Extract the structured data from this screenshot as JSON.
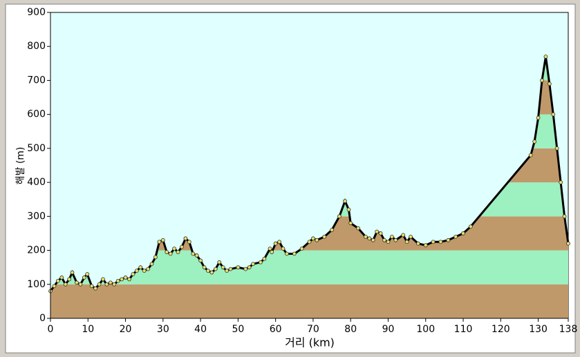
{
  "chart_data": {
    "type": "area",
    "xlabel": "거리   (km)",
    "ylabel": "해발 (m)",
    "x": [
      0,
      1,
      2,
      3,
      4,
      5,
      5.8,
      7,
      8,
      9,
      9.8,
      11,
      12,
      13,
      14,
      15,
      16,
      17,
      18,
      19,
      20,
      21,
      22,
      23,
      24,
      25,
      26,
      27,
      28,
      29,
      30,
      31,
      32,
      33,
      34,
      35,
      36,
      37,
      38,
      39,
      40,
      41,
      42,
      43,
      44,
      45,
      46,
      47,
      48,
      50,
      52,
      53,
      54,
      56,
      57,
      58.5,
      59,
      60,
      61,
      62,
      63,
      65,
      67,
      69,
      70,
      71,
      73,
      75,
      77,
      78.5,
      79.5,
      80,
      82,
      84,
      85,
      86,
      87,
      88,
      89,
      90,
      91,
      92,
      94,
      95,
      96,
      98,
      100,
      102,
      104,
      106,
      108,
      110,
      112,
      128,
      129,
      130,
      131,
      132,
      133,
      134,
      135,
      136,
      137,
      138
    ],
    "values": [
      80,
      95,
      110,
      120,
      100,
      115,
      135,
      105,
      100,
      120,
      130,
      95,
      88,
      100,
      115,
      100,
      105,
      100,
      110,
      115,
      120,
      115,
      130,
      140,
      150,
      140,
      145,
      160,
      180,
      225,
      230,
      195,
      190,
      205,
      195,
      210,
      235,
      225,
      190,
      185,
      170,
      150,
      140,
      135,
      145,
      165,
      150,
      140,
      145,
      150,
      145,
      150,
      160,
      165,
      175,
      205,
      195,
      220,
      225,
      205,
      190,
      190,
      205,
      225,
      235,
      230,
      240,
      260,
      300,
      345,
      320,
      280,
      265,
      240,
      235,
      230,
      255,
      250,
      230,
      225,
      240,
      230,
      245,
      225,
      240,
      220,
      215,
      225,
      225,
      230,
      240,
      250,
      270,
      480,
      520,
      590,
      700,
      770,
      690,
      600,
      500,
      400,
      300,
      220
    ],
    "line_color": "#000000",
    "marker_color": "#e8e070",
    "band_colors": [
      "#c0996b",
      "#9df0bf"
    ],
    "background": "#e0ffff",
    "xlim": [
      0,
      138
    ],
    "xticks": [
      0,
      10,
      20,
      30,
      40,
      50,
      60,
      70,
      80,
      90,
      100,
      110,
      120,
      130,
      138
    ],
    "ylim": [
      0,
      900
    ],
    "yticks": [
      0,
      100,
      200,
      300,
      400,
      500,
      600,
      700,
      800,
      900
    ]
  }
}
